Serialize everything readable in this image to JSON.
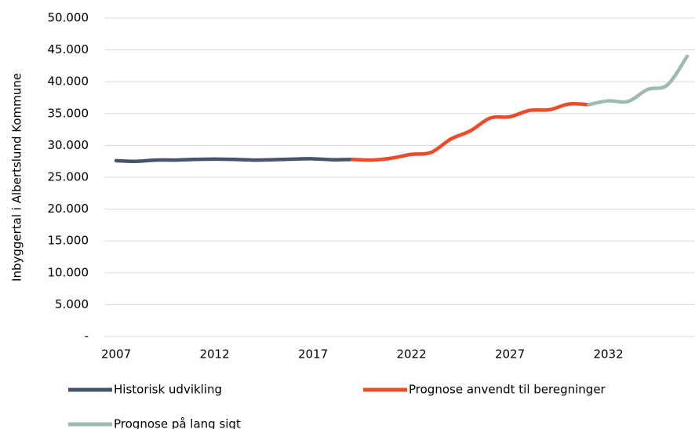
{
  "chart_data": {
    "type": "line",
    "ylabel": "Inbyggertal i Albertslund Kommune",
    "xlim": [
      2006.4,
      2036.4
    ],
    "xticks": [
      2007,
      2012,
      2017,
      2022,
      2027,
      2032
    ],
    "ylim": [
      0,
      50000
    ],
    "yticks": [
      {
        "value": 0,
        "label": "-"
      },
      {
        "value": 5000,
        "label": "5.000"
      },
      {
        "value": 10000,
        "label": "10.000"
      },
      {
        "value": 15000,
        "label": "15.000"
      },
      {
        "value": 20000,
        "label": "20.000"
      },
      {
        "value": 25000,
        "label": "25.000"
      },
      {
        "value": 30000,
        "label": "30.000"
      },
      {
        "value": 35000,
        "label": "35.000"
      },
      {
        "value": 40000,
        "label": "40.000"
      },
      {
        "value": 45000,
        "label": "45.000"
      },
      {
        "value": 50000,
        "label": "50.000"
      }
    ],
    "grid": true,
    "legend": "bottom",
    "series": [
      {
        "name": "Historisk udvikling",
        "color": "#44546a",
        "x": [
          2007,
          2008,
          2009,
          2010,
          2011,
          2012,
          2013,
          2014,
          2015,
          2016,
          2017,
          2018,
          2019
        ],
        "values": [
          27600,
          27500,
          27700,
          27700,
          27800,
          27850,
          27800,
          27700,
          27750,
          27850,
          27900,
          27750,
          27800
        ]
      },
      {
        "name": "Prognose anvendt til beregninger",
        "color": "#ee4b2b",
        "x": [
          2019,
          2020,
          2021,
          2022,
          2023,
          2024,
          2025,
          2026,
          2027,
          2028,
          2029,
          2030,
          2031
        ],
        "values": [
          27800,
          27700,
          28000,
          28600,
          28900,
          31000,
          32300,
          34300,
          34500,
          35500,
          35600,
          36500,
          36400
        ]
      },
      {
        "name": "Prognose på lang sigt",
        "color": "#9dbbaf",
        "x": [
          2031,
          2032,
          2033,
          2034,
          2035,
          2036
        ],
        "values": [
          36400,
          37000,
          36900,
          38800,
          39500,
          44000
        ]
      }
    ]
  }
}
